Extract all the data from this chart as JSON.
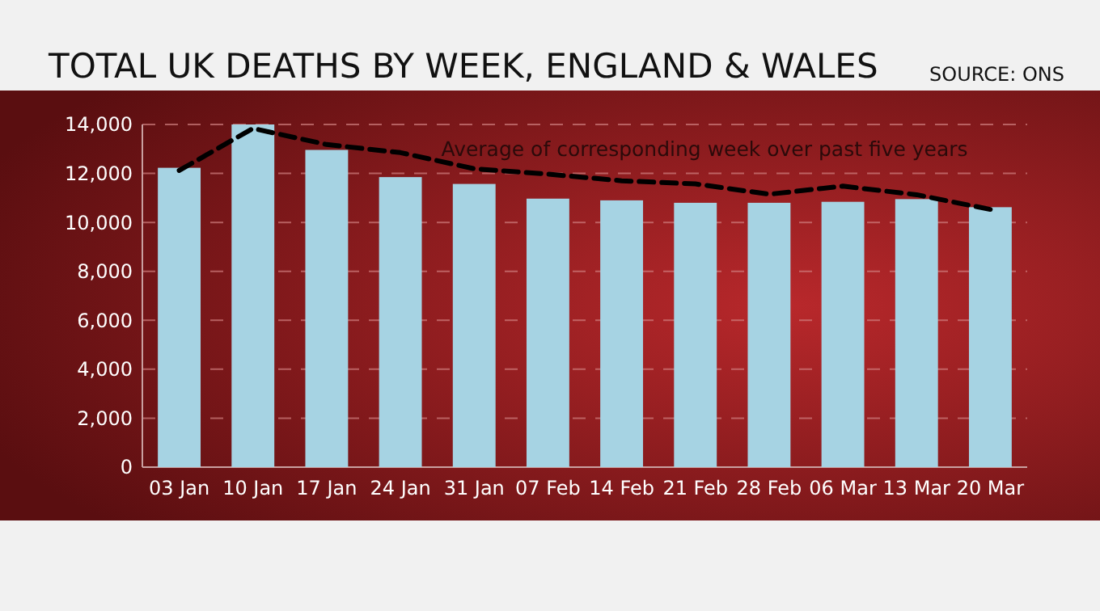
{
  "chart_data": {
    "type": "bar",
    "title": "TOTAL UK DEATHS BY WEEK, ENGLAND & WALES",
    "annotations": [
      "SOURCE: ONS"
    ],
    "categories": [
      "03 Jan",
      "10 Jan",
      "17 Jan",
      "24 Jan",
      "31 Jan",
      "07 Feb",
      "14 Feb",
      "21 Feb",
      "28 Feb",
      "06 Mar",
      "13 Mar",
      "20 Mar"
    ],
    "series": [
      {
        "color": "#a6d3e3",
        "values": [
          12230,
          14000,
          12960,
          11850,
          11570,
          10970,
          10900,
          10800,
          10800,
          10840,
          10950,
          10620
        ]
      },
      {
        "type": "line",
        "name": "Average of corresponding week over past five years",
        "color": "#000000",
        "line_style": "dashed",
        "values": [
          12120,
          13840,
          13180,
          12850,
          12190,
          11970,
          11700,
          11570,
          11150,
          11480,
          11130,
          10530
        ]
      }
    ],
    "ylim": [
      0,
      14000
    ],
    "yticks": [
      {
        "value": 0,
        "label": "0"
      },
      {
        "value": 2000,
        "label": "2,000"
      },
      {
        "value": 4000,
        "label": "4,000"
      },
      {
        "value": 6000,
        "label": "6,000"
      },
      {
        "value": 8000,
        "label": "8,000"
      },
      {
        "value": 10000,
        "label": "10,000"
      },
      {
        "value": 12000,
        "label": "12,000"
      },
      {
        "value": 14000,
        "label": "14,000"
      }
    ],
    "grid": "y"
  }
}
